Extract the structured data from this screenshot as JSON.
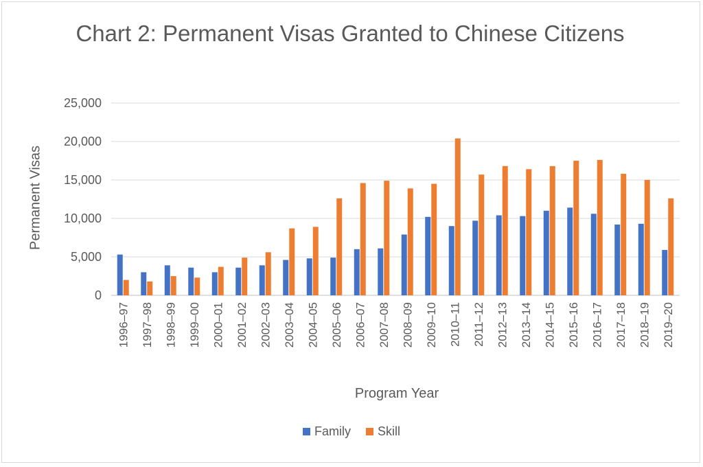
{
  "chart_data": {
    "type": "bar",
    "title": "Chart 2: Permanent Visas Granted to Chinese Citizens",
    "xlabel": "Program Year",
    "ylabel": "Permanent Visas",
    "ylim": [
      0,
      25000
    ],
    "yticks": [
      "0",
      "5,000",
      "10,000",
      "15,000",
      "20,000",
      "25,000"
    ],
    "grid": true,
    "legend_position": "bottom",
    "categories": [
      "1996–97",
      "1997–98",
      "1998–99",
      "1999–00",
      "2000–01",
      "2001–02",
      "2002–03",
      "2003–04",
      "2004–05",
      "2005–06",
      "2006–07",
      "2007–08",
      "2008–09",
      "2009–10",
      "2010–11",
      "2011–12",
      "2012–13",
      "2013–14",
      "2014–15",
      "2015–16",
      "2016–17",
      "2017–18",
      "2018–19",
      "2019–20"
    ],
    "series": [
      {
        "name": "Family",
        "color": "#4472c4",
        "values": [
          5300,
          3000,
          3900,
          3600,
          3000,
          3600,
          3900,
          4600,
          4800,
          4900,
          6000,
          6100,
          7900,
          10200,
          9000,
          9700,
          10400,
          10300,
          11000,
          11400,
          10600,
          9200,
          9300,
          5900
        ]
      },
      {
        "name": "Skill",
        "color": "#ed7d31",
        "values": [
          2000,
          1800,
          2500,
          2300,
          3700,
          4900,
          5600,
          8700,
          8900,
          12600,
          14600,
          14900,
          13900,
          14500,
          20400,
          15700,
          16800,
          16400,
          16800,
          17500,
          17600,
          15800,
          15000,
          12600
        ]
      }
    ]
  }
}
